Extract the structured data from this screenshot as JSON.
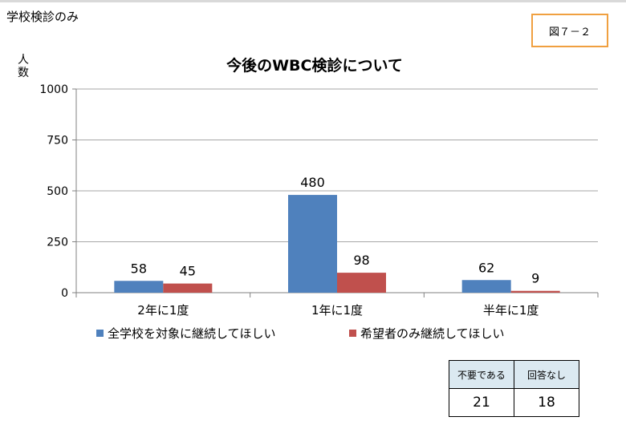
{
  "header_label": "学校検診のみ",
  "figure_label": "図７－２",
  "chart_data": {
    "type": "bar",
    "title": "今後のWBC検診について",
    "ylabel": "人数",
    "ylim": [
      0,
      1000
    ],
    "yticks": [
      0,
      250,
      500,
      750,
      1000
    ],
    "grid": true,
    "legend_position": "bottom",
    "categories": [
      "2年に1度",
      "1年に1度",
      "半年に1度"
    ],
    "series": [
      {
        "name": "全学校を対象に継続してほしい",
        "color": "#4f81bd",
        "values": [
          58,
          480,
          62
        ]
      },
      {
        "name": "希望者のみ継続してほしい",
        "color": "#c0504d",
        "values": [
          45,
          98,
          9
        ]
      }
    ]
  },
  "answers_table": {
    "headers": [
      "不要である",
      "回答なし"
    ],
    "values": [
      "21",
      "18"
    ]
  }
}
